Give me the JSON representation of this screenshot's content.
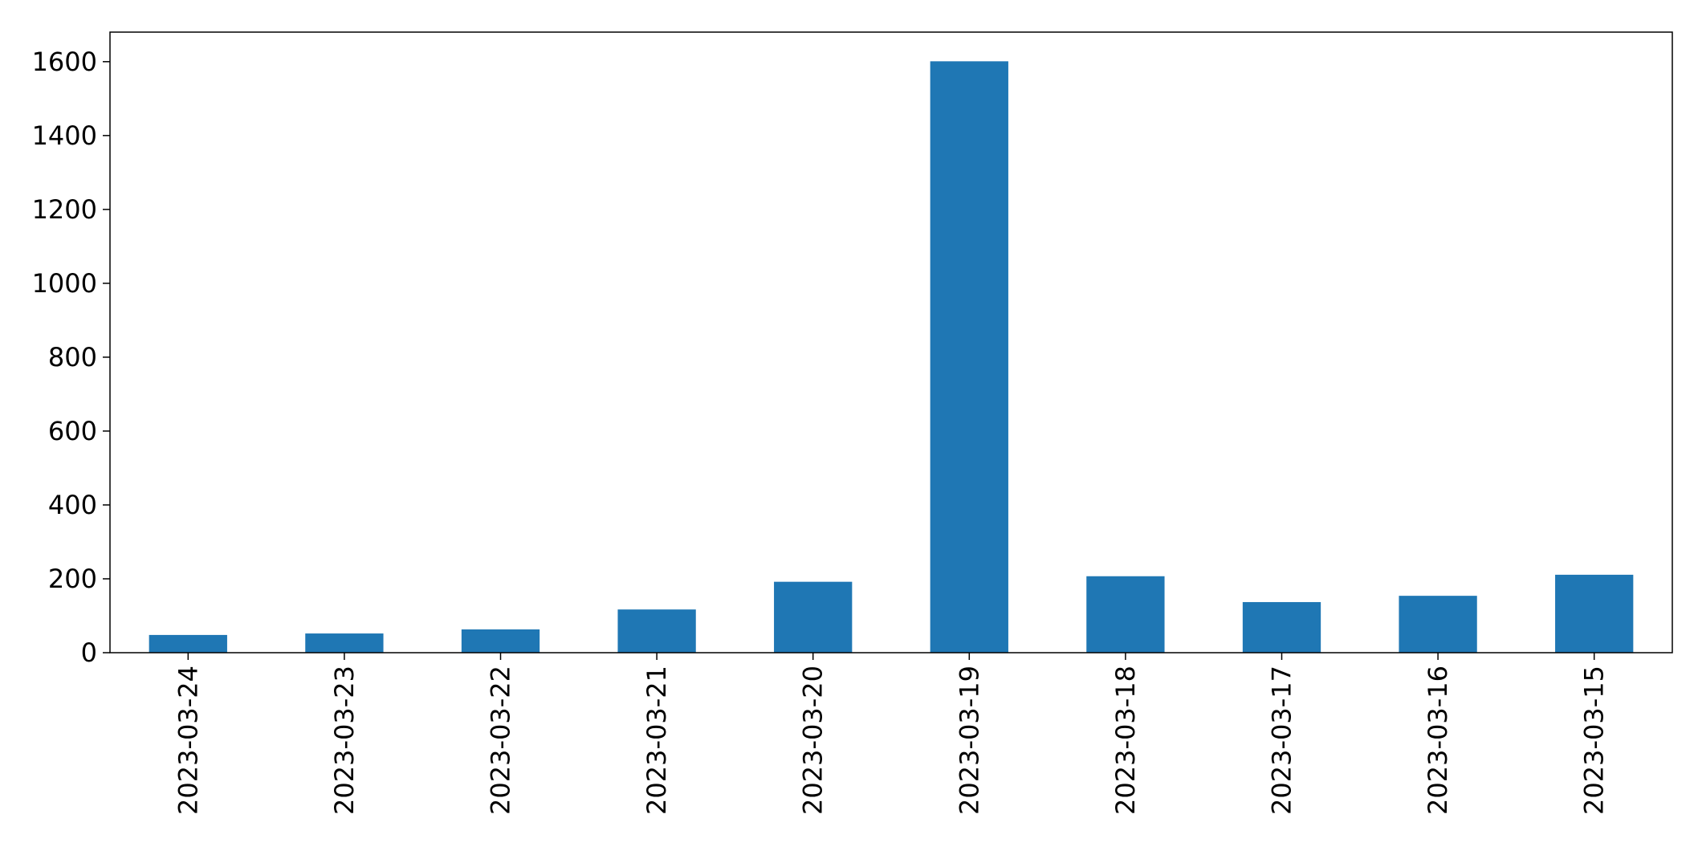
{
  "chart_data": {
    "type": "bar",
    "categories": [
      "2023-03-24",
      "2023-03-23",
      "2023-03-22",
      "2023-03-21",
      "2023-03-20",
      "2023-03-19",
      "2023-03-18",
      "2023-03-17",
      "2023-03-16",
      "2023-03-15"
    ],
    "values": [
      48,
      52,
      63,
      117,
      192,
      1601,
      207,
      137,
      154,
      211
    ],
    "ylim": [
      0,
      1680
    ],
    "yticks": [
      0,
      200,
      400,
      600,
      800,
      1000,
      1200,
      1400,
      1600
    ],
    "grid": false,
    "bar_color": "#1f77b4"
  }
}
